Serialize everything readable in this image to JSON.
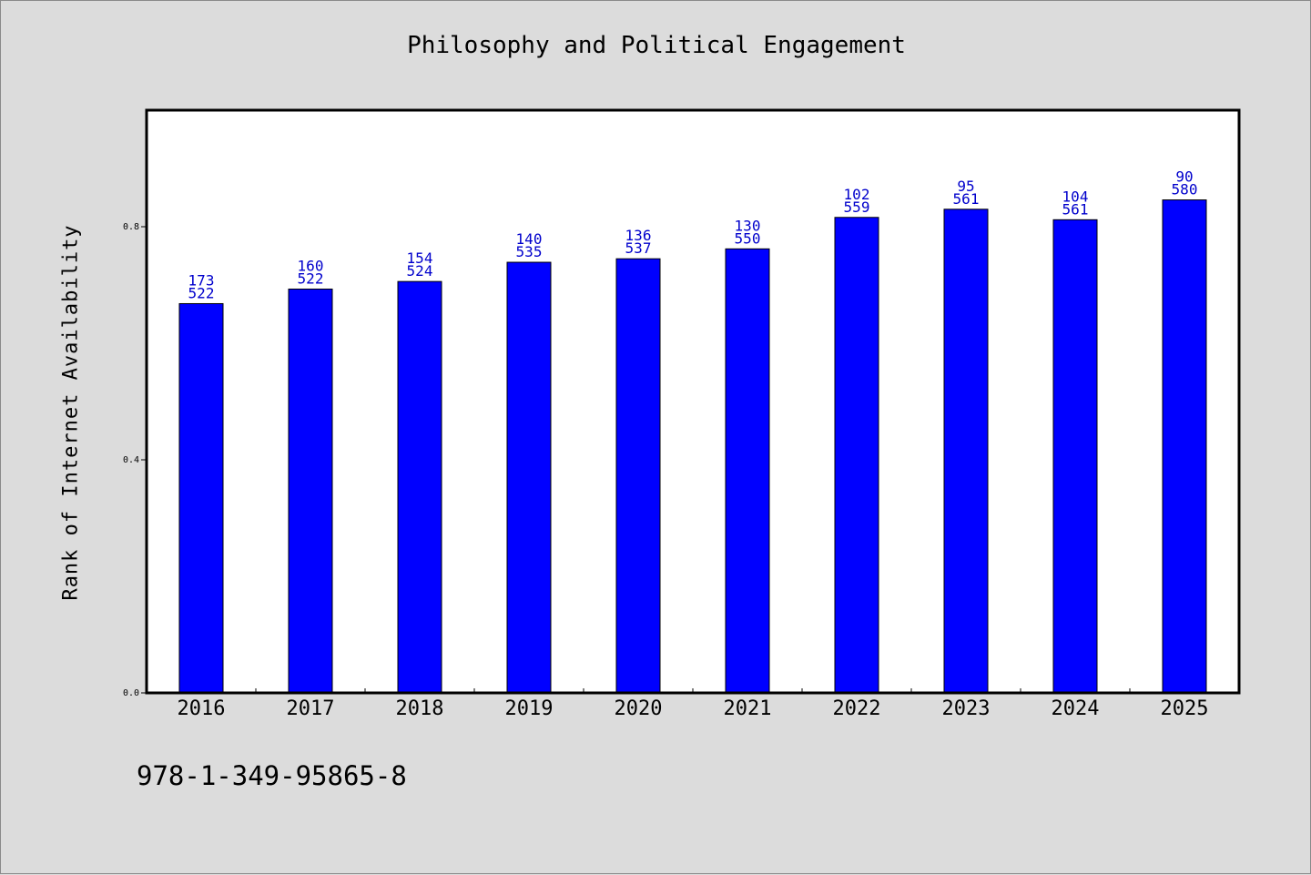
{
  "chart_data": {
    "type": "bar",
    "title": "Philosophy and Political Engagement",
    "xlabel": "",
    "ylabel": "Rank of Internet Availability",
    "categories": [
      "2016",
      "2017",
      "2018",
      "2019",
      "2020",
      "2021",
      "2022",
      "2023",
      "2024",
      "2025"
    ],
    "values": [
      0.668,
      0.693,
      0.706,
      0.739,
      0.745,
      0.762,
      0.816,
      0.83,
      0.812,
      0.846
    ],
    "annotations_top": [
      "173",
      "160",
      "154",
      "140",
      "136",
      "130",
      "102",
      "95",
      "104",
      "90"
    ],
    "annotations_bottom": [
      "522",
      "522",
      "524",
      "535",
      "537",
      "550",
      "559",
      "561",
      "561",
      "580"
    ],
    "ylim": [
      0,
      1.0
    ],
    "yticks": [
      "0.0",
      "0.4",
      "0.8"
    ],
    "grid": false,
    "bar_color": "#0000ff",
    "label_color": "#0000cc"
  },
  "footer": {
    "code": "978-1-349-95865-8"
  }
}
